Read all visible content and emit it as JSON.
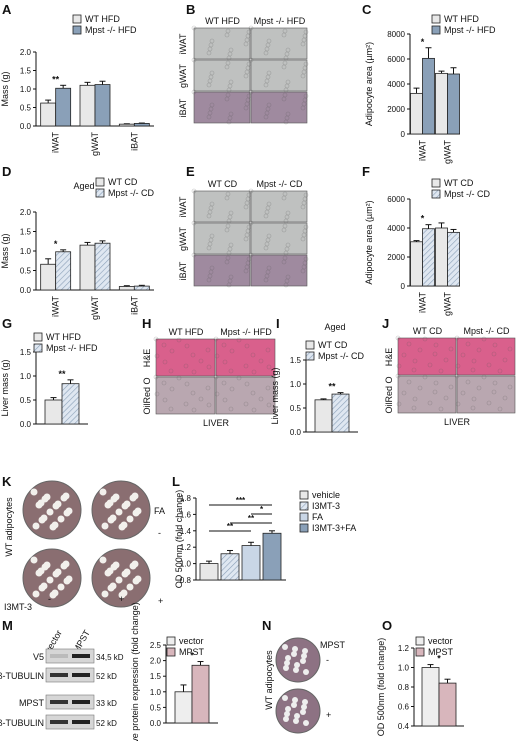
{
  "panels": {
    "A": {
      "letter": "A",
      "legend": [
        "WT HFD",
        "Mpst -/- HFD"
      ],
      "ylabel": "Mass (g)",
      "yticks": [
        "0.0",
        "0.5",
        "1.0",
        "1.5",
        "2.0"
      ],
      "ylim": [
        0,
        2
      ],
      "categories": [
        "iWAT",
        "gWAT",
        "iBAT"
      ],
      "series": [
        {
          "name": "WT HFD",
          "values": [
            0.62,
            1.1,
            0.05
          ]
        },
        {
          "name": "Mpst -/- HFD",
          "values": [
            1.02,
            1.12,
            0.07
          ]
        }
      ],
      "errors": [
        [
          0.08,
          0.08,
          0.01
        ],
        [
          0.08,
          0.09,
          0.01
        ]
      ],
      "stars": [
        {
          "cat": 0,
          "text": "**"
        }
      ]
    },
    "B": {
      "letter": "B",
      "cols": [
        "WT HFD",
        "Mpst -/- HFD"
      ],
      "rows": [
        "iWAT",
        "gWAT",
        "iBAT"
      ]
    },
    "C": {
      "letter": "C",
      "legend": [
        "WT HFD",
        "Mpst -/- HFD"
      ],
      "ylabel": "Adipocyte area (µm²)",
      "yticks": [
        "0",
        "2000",
        "4000",
        "6000",
        "8000"
      ],
      "ylim": [
        0,
        8000
      ],
      "categories": [
        "iWAT",
        "gWAT"
      ],
      "series": [
        {
          "name": "WT HFD",
          "values": [
            3250,
            4850
          ]
        },
        {
          "name": "Mpst -/- HFD",
          "values": [
            6050,
            4800
          ]
        }
      ],
      "errors": [
        [
          420,
          180
        ],
        [
          850,
          500
        ]
      ],
      "stars": [
        {
          "cat": 0,
          "text": "*"
        }
      ]
    },
    "D": {
      "letter": "D",
      "title": "Aged",
      "legend": [
        "WT CD",
        "Mpst -/- CD"
      ],
      "ylabel": "Mass (g)",
      "yticks": [
        "0.0",
        "0.5",
        "1.0",
        "1.5",
        "2.0"
      ],
      "ylim": [
        0,
        2
      ],
      "categories": [
        "iWAT",
        "gWAT",
        "iBAT"
      ],
      "series": [
        {
          "name": "WT CD",
          "values": [
            0.66,
            1.15,
            0.09
          ]
        },
        {
          "name": "Mpst -/- CD",
          "values": [
            0.98,
            1.2,
            0.1
          ]
        }
      ],
      "errors": [
        [
          0.14,
          0.07,
          0.02
        ],
        [
          0.05,
          0.06,
          0.02
        ]
      ],
      "stars": [
        {
          "cat": 0,
          "text": "*"
        }
      ]
    },
    "E": {
      "letter": "E",
      "cols": [
        "WT CD",
        "Mpst -/- CD"
      ],
      "rows": [
        "iWAT",
        "gWAT",
        "iBAT"
      ]
    },
    "F": {
      "letter": "F",
      "legend": [
        "WT CD",
        "Mpst -/- CD"
      ],
      "ylabel": "Adipocyte area (µm²)",
      "yticks": [
        "0",
        "2000",
        "4000",
        "6000"
      ],
      "ylim": [
        0,
        6000
      ],
      "categories": [
        "iWAT",
        "gWAT"
      ],
      "series": [
        {
          "name": "WT CD",
          "values": [
            3050,
            4000
          ]
        },
        {
          "name": "Mpst -/- CD",
          "values": [
            3950,
            3700
          ]
        }
      ],
      "errors": [
        [
          80,
          350
        ],
        [
          280,
          200
        ]
      ],
      "stars": [
        {
          "cat": 0,
          "text": "*"
        }
      ]
    },
    "G": {
      "letter": "G",
      "legend": [
        "WT HFD",
        "Mpst -/- HFD"
      ],
      "ylabel": "Liver mass (g)",
      "yticks": [
        "0.0",
        "0.5",
        "1.0",
        "1.5"
      ],
      "ylim": [
        0,
        1.5
      ],
      "categories": [
        ""
      ],
      "series": [
        {
          "name": "WT HFD",
          "values": [
            0.5
          ]
        },
        {
          "name": "Mpst -/- HFD",
          "values": [
            0.84
          ]
        }
      ],
      "errors": [
        [
          0.05
        ],
        [
          0.08
        ]
      ],
      "stars": [
        {
          "cat": 0,
          "text": "**"
        }
      ]
    },
    "H": {
      "letter": "H",
      "cols": [
        "WT HFD",
        "Mpst -/- HFD"
      ],
      "rows": [
        "H&E",
        "OilRed O"
      ],
      "caption": "LIVER"
    },
    "I": {
      "letter": "I",
      "title": "Aged",
      "legend": [
        "WT CD",
        "Mpst -/- CD"
      ],
      "ylabel": "Liver mass (g)",
      "yticks": [
        "0.0",
        "0.5",
        "1.0",
        "1.5"
      ],
      "ylim": [
        0,
        1.5
      ],
      "categories": [
        ""
      ],
      "series": [
        {
          "name": "WT CD",
          "values": [
            0.67
          ]
        },
        {
          "name": "Mpst -/- CD",
          "values": [
            0.79
          ]
        }
      ],
      "errors": [
        [
          0.02
        ],
        [
          0.03
        ]
      ],
      "stars": [
        {
          "cat": 0,
          "text": "**"
        }
      ]
    },
    "J": {
      "letter": "J",
      "cols": [
        "WT CD",
        "Mpst -/- CD"
      ],
      "rows": [
        "H&E",
        "OilRed O"
      ],
      "caption": "LIVER"
    },
    "K": {
      "letter": "K",
      "side": "WT adipocytes",
      "fa": "FA",
      "signs": [
        "-",
        "+",
        "-",
        "+"
      ],
      "treat": "I3MT-3"
    },
    "L": {
      "letter": "L",
      "legend": [
        "vehicle",
        "I3MT-3",
        "FA",
        "I3MT-3+FA"
      ],
      "ylabel": "OD 500nm (fold change)",
      "yticks": [
        "0.8",
        "1.0",
        "1.2",
        "1.4",
        "1.6",
        "1.8"
      ],
      "ylim": [
        0.8,
        1.8
      ],
      "categories": [
        "vehicle",
        "I3MT-3",
        "FA",
        "I3MT-3+FA"
      ],
      "values": [
        1.0,
        1.12,
        1.22,
        1.37
      ],
      "errors": [
        0.03,
        0.04,
        0.04,
        0.03
      ],
      "brackets": [
        {
          "from": 0,
          "to": 3,
          "text": "***"
        },
        {
          "from": 2,
          "to": 3,
          "text": "*"
        },
        {
          "from": 1,
          "to": 3,
          "text": "**"
        },
        {
          "from": 0,
          "to": 2,
          "text": "**"
        }
      ]
    },
    "M": {
      "letter": "M",
      "lanes": [
        "vector",
        "MPST"
      ],
      "rows": [
        "V5",
        "β-TUBULIN",
        "MPST",
        "β-TUBULIN"
      ],
      "kd": [
        "34,5 kD",
        "52 kD",
        "33 kD",
        "52 kD"
      ],
      "legend": [
        "vector",
        "MPST"
      ],
      "ylabel": "Relative protein expression (fold change)",
      "yticks": [
        "0.0",
        "0.5",
        "1.0",
        "1.5",
        "2.0",
        "2.5"
      ],
      "ylim": [
        0,
        2.5
      ],
      "categories": [
        ""
      ],
      "series": [
        {
          "name": "vector",
          "values": [
            1.0
          ]
        },
        {
          "name": "MPST",
          "values": [
            1.85
          ]
        }
      ],
      "errors": [
        [
          0.22
        ],
        [
          0.12
        ]
      ],
      "stars": [
        {
          "cat": 0,
          "text": "*"
        }
      ]
    },
    "N": {
      "letter": "N",
      "side": "WT adipocytes",
      "label": "MPST",
      "signs": [
        "-",
        "+"
      ]
    },
    "O": {
      "letter": "O",
      "legend": [
        "vector",
        "MPST"
      ],
      "ylabel": "OD 500nm (fold change)",
      "yticks": [
        "0.4",
        "0.6",
        "0.8",
        "1.0",
        "1.2"
      ],
      "ylim": [
        0.4,
        1.2
      ],
      "categories": [
        ""
      ],
      "series": [
        {
          "name": "vector",
          "values": [
            1.0
          ]
        },
        {
          "name": "MPST",
          "values": [
            0.84
          ]
        }
      ],
      "errors": [
        [
          0.03
        ],
        [
          0.04
        ]
      ],
      "stars": [
        {
          "cat": 0,
          "text": "*"
        }
      ]
    }
  },
  "colors": {
    "wt": "#e8e8e8",
    "ko": "#8aa0b8",
    "ko_cd": "#c9d6e6",
    "vector": "#eeeeee",
    "mpst": "#d8b6bc",
    "fa": "#c9d6e6",
    "combo": "#8aa0b8",
    "he": "#d9608c",
    "oil": "#b9a7b0",
    "adipo": "#bfc1c0",
    "bat": "#9f8a9f"
  },
  "chart_data": [
    {
      "type": "bar",
      "panel": "A",
      "categories": [
        "iWAT",
        "gWAT",
        "iBAT"
      ],
      "series": [
        {
          "name": "WT HFD",
          "values": [
            0.62,
            1.1,
            0.05
          ]
        },
        {
          "name": "Mpst -/- HFD",
          "values": [
            1.02,
            1.12,
            0.07
          ]
        }
      ],
      "ylabel": "Mass (g)",
      "ylim": [
        0,
        2
      ]
    },
    {
      "type": "bar",
      "panel": "C",
      "categories": [
        "iWAT",
        "gWAT"
      ],
      "series": [
        {
          "name": "WT HFD",
          "values": [
            3250,
            4850
          ]
        },
        {
          "name": "Mpst -/- HFD",
          "values": [
            6050,
            4800
          ]
        }
      ],
      "ylabel": "Adipocyte area (µm²)",
      "ylim": [
        0,
        8000
      ]
    },
    {
      "type": "bar",
      "panel": "D",
      "title": "Aged",
      "categories": [
        "iWAT",
        "gWAT",
        "iBAT"
      ],
      "series": [
        {
          "name": "WT CD",
          "values": [
            0.66,
            1.15,
            0.09
          ]
        },
        {
          "name": "Mpst -/- CD",
          "values": [
            0.98,
            1.2,
            0.1
          ]
        }
      ],
      "ylabel": "Mass (g)",
      "ylim": [
        0,
        2
      ]
    },
    {
      "type": "bar",
      "panel": "F",
      "categories": [
        "iWAT",
        "gWAT"
      ],
      "series": [
        {
          "name": "WT CD",
          "values": [
            3050,
            4000
          ]
        },
        {
          "name": "Mpst -/- CD",
          "values": [
            3950,
            3700
          ]
        }
      ],
      "ylabel": "Adipocyte area (µm²)",
      "ylim": [
        0,
        6000
      ]
    },
    {
      "type": "bar",
      "panel": "G",
      "series": [
        {
          "name": "WT HFD",
          "values": [
            0.5
          ]
        },
        {
          "name": "Mpst -/- HFD",
          "values": [
            0.84
          ]
        }
      ],
      "ylabel": "Liver mass (g)",
      "ylim": [
        0,
        1.5
      ]
    },
    {
      "type": "bar",
      "panel": "I",
      "title": "Aged",
      "series": [
        {
          "name": "WT CD",
          "values": [
            0.67
          ]
        },
        {
          "name": "Mpst -/- CD",
          "values": [
            0.79
          ]
        }
      ],
      "ylabel": "Liver mass (g)",
      "ylim": [
        0,
        1.5
      ]
    },
    {
      "type": "bar",
      "panel": "L",
      "categories": [
        "vehicle",
        "I3MT-3",
        "FA",
        "I3MT-3+FA"
      ],
      "values": [
        1.0,
        1.12,
        1.22,
        1.37
      ],
      "ylabel": "OD 500nm (fold change)",
      "ylim": [
        0.8,
        1.8
      ]
    },
    {
      "type": "bar",
      "panel": "M",
      "series": [
        {
          "name": "vector",
          "values": [
            1.0
          ]
        },
        {
          "name": "MPST",
          "values": [
            1.85
          ]
        }
      ],
      "ylabel": "Relative protein expression (fold change)",
      "ylim": [
        0,
        2.5
      ]
    },
    {
      "type": "bar",
      "panel": "O",
      "series": [
        {
          "name": "vector",
          "values": [
            1.0
          ]
        },
        {
          "name": "MPST",
          "values": [
            0.84
          ]
        }
      ],
      "ylabel": "OD 500nm (fold change)",
      "ylim": [
        0.4,
        1.2
      ]
    }
  ]
}
